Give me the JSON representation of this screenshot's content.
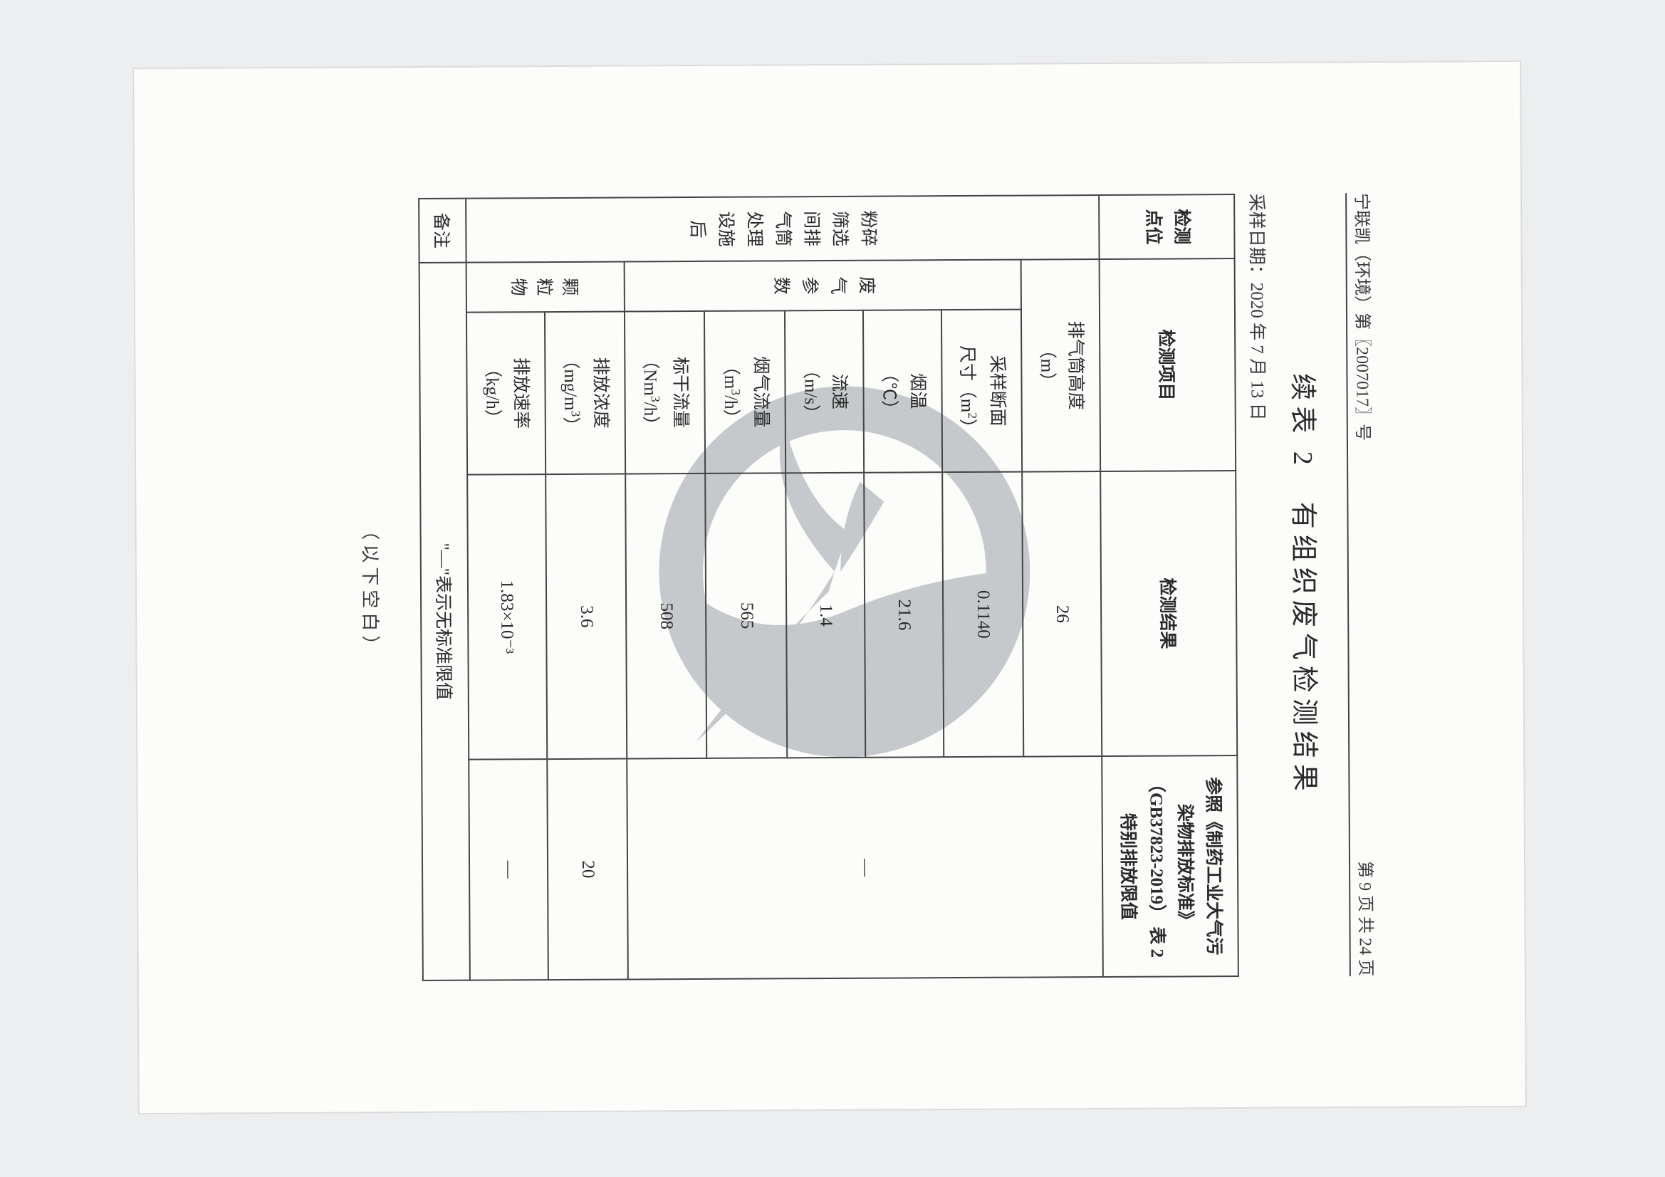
{
  "header": {
    "doc_number_left": "宁联凯（环境）第〖2007017〗号",
    "page_number_right": "第 9 页 共 24 页"
  },
  "title": {
    "table_label": "续表 2",
    "main_title": "有组织废气检测结果"
  },
  "sample_date": "采样日期：2020 年 7 月 13 日",
  "table": {
    "header": {
      "col0": "检测\n点位",
      "col1": "检测项目",
      "col2": "检测结果",
      "col3_line1": "参照《制药工业大气污",
      "col3_line2": "染物排放标准》",
      "col3_line3": "（GB37823-2019） 表 2",
      "col3_line4": "特别排放限值"
    },
    "point_label": "粉碎\n筛选\n间排\n气筒\n处理\n设施\n后",
    "rows": [
      {
        "group": "",
        "param": "排气筒高度\n（m）",
        "value": "26",
        "limit_merge": {
          "type": "big",
          "text": "—"
        }
      },
      {
        "group": "废\n气\n参\n数",
        "param": "采样断面\n尺寸（m²）",
        "value": "0.1140"
      },
      {
        "group": "",
        "param": "烟温\n（℃）",
        "value": "21.6"
      },
      {
        "group": "",
        "param": "流速\n（m/s）",
        "value": "1.4"
      },
      {
        "group": "",
        "param": "烟气流量\n（m³/h）",
        "value": "565"
      },
      {
        "group": "",
        "param": "标干流量\n（Nm³/h）",
        "value": "508"
      },
      {
        "group": "颗粒物",
        "sub": "排放浓度\n（mg/m³）",
        "value": "3.6",
        "limit": "20"
      },
      {
        "group": "",
        "sub": "排放速率\n（kg/h）",
        "value": "1.83×10⁻³",
        "limit": "—"
      }
    ],
    "note_row": {
      "label": "备注",
      "text": "\"—\"表示无标准限值"
    }
  },
  "blank_note": "（以下空白）",
  "style": {
    "page_bg": "#fcfcfb",
    "outer_bg": "#edeef0",
    "text_color": "#2a2a2a",
    "border_color": "#444444",
    "watermark_color": "#9aa0a4",
    "font_sizes": {
      "header": 24,
      "title": 38,
      "body": 25,
      "note": 26
    }
  }
}
